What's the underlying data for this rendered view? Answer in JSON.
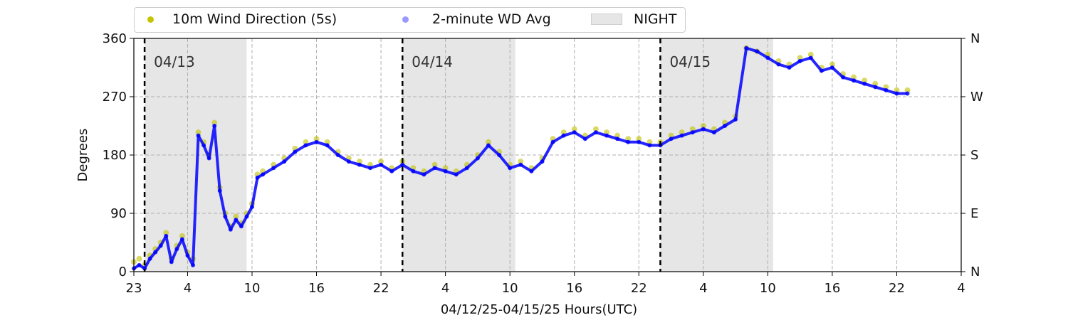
{
  "chart_data": {
    "type": "scatter",
    "title": "",
    "xlabel": "04/12/25-04/15/25  Hours(UTC)",
    "ylabel": "Degrees",
    "x_range_hours": [
      0,
      77
    ],
    "x_ticks": [
      {
        "hour": 0,
        "label": "23"
      },
      {
        "hour": 5,
        "label": "4"
      },
      {
        "hour": 11,
        "label": "10"
      },
      {
        "hour": 17,
        "label": "16"
      },
      {
        "hour": 23,
        "label": "22"
      },
      {
        "hour": 29,
        "label": "4"
      },
      {
        "hour": 35,
        "label": "10"
      },
      {
        "hour": 41,
        "label": "16"
      },
      {
        "hour": 47,
        "label": "22"
      },
      {
        "hour": 53,
        "label": "4"
      },
      {
        "hour": 59,
        "label": "10"
      },
      {
        "hour": 65,
        "label": "16"
      },
      {
        "hour": 71,
        "label": "22"
      },
      {
        "hour": 77,
        "label": "4"
      }
    ],
    "ylim": [
      0,
      360
    ],
    "y_ticks": [
      0,
      90,
      180,
      270,
      360
    ],
    "y2_tick_labels": [
      {
        "value": 0,
        "label": "N"
      },
      {
        "value": 90,
        "label": "E"
      },
      {
        "value": 180,
        "label": "S"
      },
      {
        "value": 270,
        "label": "W"
      },
      {
        "value": 360,
        "label": "N"
      }
    ],
    "grid": true,
    "legend_position": "top-left, above plot",
    "night_periods": [
      [
        1,
        10.5
      ],
      [
        25,
        35.5
      ],
      [
        49,
        59.5
      ]
    ],
    "day_markers": [
      {
        "hour": 1,
        "label": "04/13"
      },
      {
        "hour": 25,
        "label": "04/14"
      },
      {
        "hour": 49,
        "label": "04/15"
      }
    ],
    "series": [
      {
        "name": "10m Wind Direction (5s)",
        "color": "#bfbf00",
        "style": "points",
        "x": [
          0,
          0.5,
          1,
          1.5,
          2,
          2.5,
          3,
          3.5,
          4,
          4.5,
          5,
          5.5,
          6,
          6.5,
          7,
          7.5,
          8,
          8.5,
          9,
          9.5,
          10,
          10.5,
          11,
          11.5,
          12,
          13,
          14,
          15,
          16,
          17,
          18,
          19,
          20,
          21,
          22,
          23,
          24,
          25,
          26,
          27,
          28,
          29,
          30,
          31,
          32,
          33,
          34,
          35,
          36,
          37,
          38,
          39,
          40,
          41,
          42,
          43,
          44,
          45,
          46,
          47,
          48,
          49,
          50,
          51,
          52,
          53,
          54,
          55,
          56,
          57,
          58,
          59,
          60,
          61,
          62,
          63,
          64,
          65,
          66,
          67,
          68,
          69,
          70,
          71,
          72
        ],
        "y": [
          15,
          20,
          10,
          25,
          35,
          45,
          60,
          20,
          40,
          55,
          30,
          20,
          215,
          200,
          180,
          230,
          130,
          90,
          70,
          85,
          75,
          90,
          105,
          150,
          155,
          165,
          175,
          190,
          200,
          205,
          200,
          185,
          175,
          170,
          165,
          170,
          160,
          170,
          160,
          155,
          165,
          160,
          155,
          165,
          180,
          200,
          185,
          165,
          170,
          160,
          175,
          205,
          215,
          220,
          210,
          220,
          215,
          210,
          205,
          205,
          200,
          200,
          210,
          215,
          220,
          225,
          220,
          230,
          240,
          345,
          340,
          335,
          325,
          320,
          330,
          335,
          315,
          320,
          305,
          300,
          295,
          290,
          285,
          280,
          280
        ]
      },
      {
        "name": "2-minute WD Avg",
        "color": "#0000ff",
        "style": "line-points",
        "x": [
          0,
          0.5,
          1,
          1.5,
          2,
          2.5,
          3,
          3.5,
          4,
          4.5,
          5,
          5.5,
          6,
          6.5,
          7,
          7.5,
          8,
          8.5,
          9,
          9.5,
          10,
          10.5,
          11,
          11.5,
          12,
          13,
          14,
          15,
          16,
          17,
          18,
          19,
          20,
          21,
          22,
          23,
          24,
          25,
          26,
          27,
          28,
          29,
          30,
          31,
          32,
          33,
          34,
          35,
          36,
          37,
          38,
          39,
          40,
          41,
          42,
          43,
          44,
          45,
          46,
          47,
          48,
          49,
          50,
          51,
          52,
          53,
          54,
          55,
          56,
          57,
          58,
          59,
          60,
          61,
          62,
          63,
          64,
          65,
          66,
          67,
          68,
          69,
          70,
          71,
          72
        ],
        "y": [
          5,
          10,
          5,
          20,
          30,
          40,
          55,
          15,
          35,
          50,
          25,
          10,
          210,
          195,
          175,
          225,
          125,
          85,
          65,
          80,
          70,
          85,
          100,
          145,
          150,
          160,
          170,
          185,
          195,
          200,
          195,
          180,
          170,
          165,
          160,
          165,
          155,
          165,
          155,
          150,
          160,
          155,
          150,
          160,
          175,
          195,
          180,
          160,
          165,
          155,
          170,
          200,
          210,
          215,
          205,
          215,
          210,
          205,
          200,
          200,
          195,
          195,
          205,
          210,
          215,
          220,
          215,
          225,
          235,
          345,
          340,
          330,
          320,
          315,
          325,
          330,
          310,
          315,
          300,
          295,
          290,
          285,
          280,
          275,
          275
        ]
      }
    ]
  },
  "legend": {
    "items": [
      "10m Wind Direction (5s)",
      "2-minute WD Avg",
      "NIGHT"
    ]
  }
}
